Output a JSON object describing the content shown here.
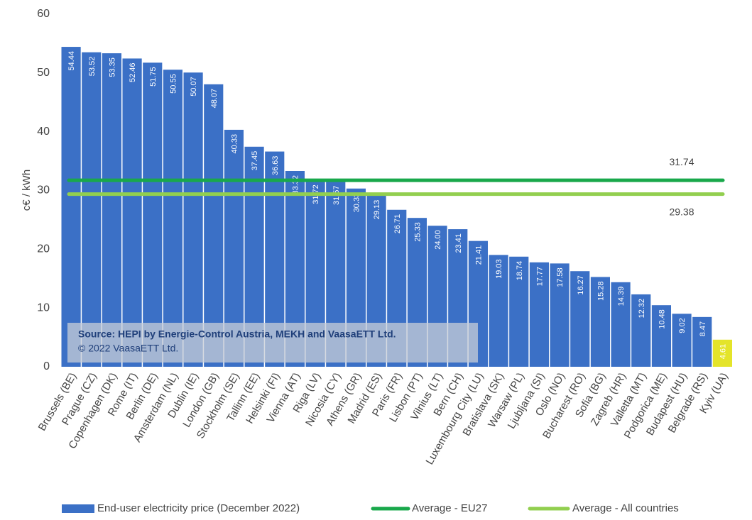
{
  "chart_data": {
    "type": "bar",
    "y_label": "c€ / kWh",
    "categories": [
      "Brussels (BE)",
      "Prague (CZ)",
      "Copenhagen (DK)",
      "Rome (IT)",
      "Berlin (DE)",
      "Amsterdam (NL)",
      "Dublin (IE)",
      "London (GB)",
      "Stockholm (SE)",
      "Tallinn (EE)",
      "Helsinki (FI)",
      "Vienna (AT)",
      "Riga (LV)",
      "Nicosia (CY)",
      "Athens (GR)",
      "Madrid (ES)",
      "Paris (FR)",
      "Lisbon (PT)",
      "Vilnius (LT)",
      "Bern (CH)",
      "Luxembourg City (LU)",
      "Bratislava (SK)",
      "Warsaw (PL)",
      "Ljubljana (SI)",
      "Oslo (NO)",
      "Bucharest (RO)",
      "Sofia (BG)",
      "Zagreb (HR)",
      "Valletta (MT)",
      "Podgorica (ME)",
      "Budapest (HU)",
      "Belgrade (RS)",
      "Kyiv (UA)"
    ],
    "series": [
      {
        "name": "End-user electricity price (December 2022)",
        "color": "#3b70c6",
        "colors": [
          "#3b70c6",
          "#3b70c6",
          "#3b70c6",
          "#3b70c6",
          "#3b70c6",
          "#3b70c6",
          "#3b70c6",
          "#3b70c6",
          "#3b70c6",
          "#3b70c6",
          "#3b70c6",
          "#3b70c6",
          "#3b70c6",
          "#3b70c6",
          "#3b70c6",
          "#3b70c6",
          "#3b70c6",
          "#3b70c6",
          "#3b70c6",
          "#3b70c6",
          "#3b70c6",
          "#3b70c6",
          "#3b70c6",
          "#3b70c6",
          "#3b70c6",
          "#3b70c6",
          "#3b70c6",
          "#3b70c6",
          "#3b70c6",
          "#3b70c6",
          "#3b70c6",
          "#3b70c6",
          "#e4e42a"
        ],
        "values": [
          54.44,
          53.52,
          53.35,
          52.46,
          51.75,
          50.55,
          50.07,
          48.07,
          40.33,
          37.45,
          36.63,
          33.32,
          31.72,
          31.57,
          30.33,
          29.13,
          26.71,
          25.33,
          24.0,
          23.41,
          21.41,
          19.03,
          18.74,
          17.77,
          17.58,
          16.27,
          15.28,
          14.39,
          12.32,
          10.48,
          9.02,
          8.47,
          4.61
        ],
        "value_labels": [
          "54.44",
          "53.52",
          "53.35",
          "52.46",
          "51.75",
          "50.55",
          "50.07",
          "48.07",
          "40.33",
          "37.45",
          "36.63",
          "33.32",
          "31.72",
          "31.57",
          "30.33",
          "29.13",
          "26.71",
          "25.33",
          "24.00",
          "23.41",
          "21.41",
          "19.03",
          "18.74",
          "17.77",
          "17.58",
          "16.27",
          "15.28",
          "14.39",
          "12.32",
          "10.48",
          "9.02",
          "8.47",
          "4.61"
        ]
      }
    ],
    "reference_lines": [
      {
        "name": "Average - EU27",
        "color": "#19a84b",
        "value": 31.74
      },
      {
        "name": "Average - All countries",
        "color": "#92cf4f",
        "value": 29.38
      }
    ],
    "annotation": [
      "Source: HEPI by Energie-Control Austria, MEKH and VaasaETT Ltd.",
      "© 2022 VaasaETT Ltd."
    ],
    "ylim": [
      0,
      60
    ],
    "yticks": [
      0,
      10,
      20,
      30,
      40,
      50,
      60
    ],
    "grid": false
  }
}
